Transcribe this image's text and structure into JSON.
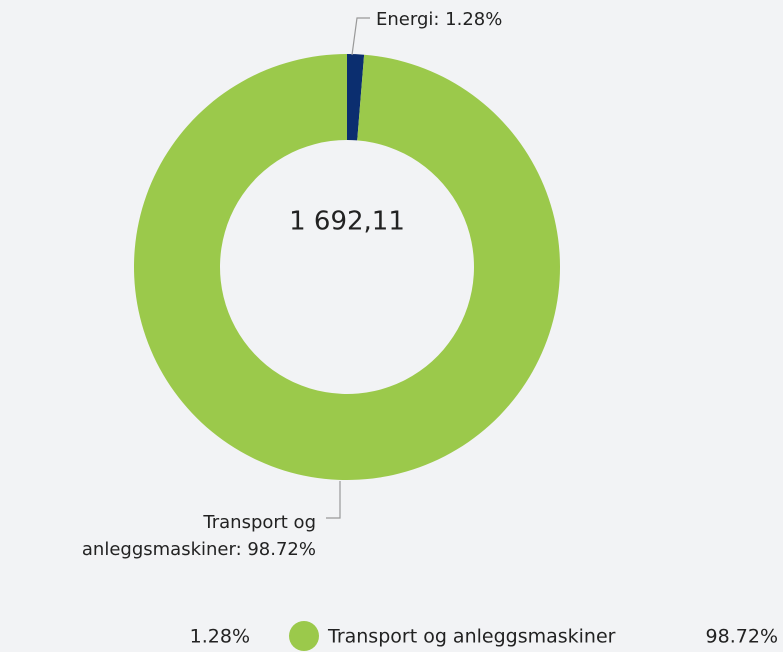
{
  "chart_data": {
    "type": "donut",
    "categories": [
      "Energi",
      "Transport og anleggsmaskiner"
    ],
    "values": [
      1.28,
      98.72
    ],
    "value_labels": [
      "1.28%",
      "98.72%"
    ],
    "data_labels": [
      [
        "Energi: 1.28%"
      ],
      [
        "Transport og",
        "anleggsmaskiner: 98.72%"
      ]
    ],
    "colors": [
      "#0b2e6f",
      "#9bc94b"
    ],
    "center_label": "1 692,11"
  }
}
